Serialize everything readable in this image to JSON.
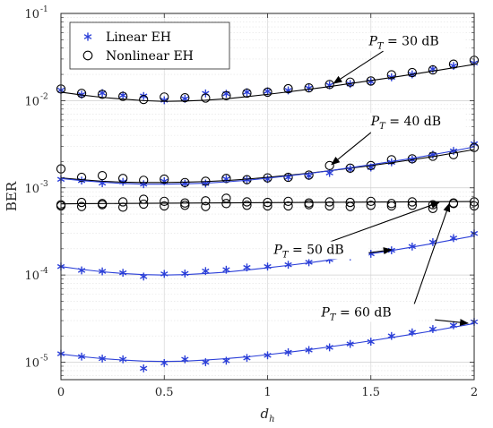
{
  "chart_data": {
    "type": "line",
    "xlabel": "d_h",
    "xlabel_main": "d",
    "xlabel_sub": "h",
    "ylabel": "BER",
    "xlim": [
      0,
      2
    ],
    "ylim_log10": [
      -5.2,
      -1
    ],
    "yscale": "log",
    "grid": true,
    "xticks": [
      0,
      0.5,
      1,
      1.5,
      2
    ],
    "xtick_labels": [
      "0",
      "0.5",
      "1",
      "1.5",
      "2"
    ],
    "yticks_exp": [
      -5,
      -4,
      -3,
      -2,
      -1
    ],
    "ytick_base": "10",
    "ytick_exps": [
      "-5",
      "-4",
      "-3",
      "-2",
      "-1"
    ],
    "legend": {
      "placement": "top-left",
      "entries": [
        {
          "label": "Linear EH",
          "marker": "asterisk",
          "color": "#2b3fd8"
        },
        {
          "label": "Nonlinear EH",
          "marker": "circle",
          "color": "#000000"
        }
      ]
    },
    "x": [
      0,
      0.1,
      0.2,
      0.3,
      0.4,
      0.5,
      0.6,
      0.7,
      0.8,
      0.9,
      1.0,
      1.1,
      1.2,
      1.3,
      1.4,
      1.5,
      1.6,
      1.7,
      1.8,
      1.9,
      2.0
    ],
    "series": [
      {
        "group": "30",
        "kind": "linear-markers",
        "color": "#2b3fd8",
        "values": [
          0.0132,
          0.0117,
          0.0122,
          0.0115,
          0.0113,
          0.0101,
          0.0105,
          0.0121,
          0.012,
          0.0125,
          0.0128,
          0.0131,
          0.0139,
          0.015,
          0.0155,
          0.0165,
          0.0185,
          0.02,
          0.023,
          0.025,
          0.027
        ]
      },
      {
        "group": "30",
        "kind": "nonlinear-markers",
        "color": "#000000",
        "values": [
          0.0136,
          0.0121,
          0.0118,
          0.0112,
          0.0103,
          0.011,
          0.0108,
          0.0107,
          0.0114,
          0.0122,
          0.0125,
          0.0137,
          0.014,
          0.0153,
          0.0163,
          0.0168,
          0.0198,
          0.021,
          0.0225,
          0.0262,
          0.029
        ]
      },
      {
        "group": "30",
        "kind": "curve",
        "color": "#000000",
        "values": [
          0.0125,
          0.0116,
          0.0109,
          0.0104,
          0.01,
          0.0098,
          0.0099,
          0.0101,
          0.0105,
          0.0111,
          0.0118,
          0.0126,
          0.0135,
          0.0145,
          0.0157,
          0.017,
          0.0184,
          0.02,
          0.0218,
          0.0238,
          0.026
        ]
      },
      {
        "group": "40",
        "kind": "linear-markers",
        "color": "#2b3fd8",
        "values": [
          0.00125,
          0.00121,
          0.00113,
          0.00117,
          0.0011,
          0.00119,
          0.00112,
          0.00112,
          0.00126,
          0.00124,
          0.00126,
          0.00132,
          0.00137,
          0.00148,
          0.00164,
          0.00171,
          0.00196,
          0.0021,
          0.0024,
          0.00265,
          0.0032
        ]
      },
      {
        "group": "40",
        "kind": "nonlinear-markers",
        "color": "#000000",
        "values": [
          0.00165,
          0.00132,
          0.00138,
          0.00128,
          0.00122,
          0.00126,
          0.00115,
          0.00119,
          0.00128,
          0.00124,
          0.0013,
          0.00132,
          0.0014,
          0.0018,
          0.00168,
          0.0018,
          0.0021,
          0.00215,
          0.0023,
          0.0024,
          0.0029
        ]
      },
      {
        "group": "40",
        "kind": "curve",
        "color": "#000000",
        "values": [
          0.0013,
          0.00124,
          0.00119,
          0.00116,
          0.00115,
          0.00115,
          0.00116,
          0.00118,
          0.00121,
          0.00126,
          0.00132,
          0.00139,
          0.00147,
          0.00157,
          0.00168,
          0.0018,
          0.00194,
          0.0021,
          0.00228,
          0.0025,
          0.00275
        ]
      },
      {
        "group": "40",
        "kind": "curve",
        "color": "#2b3fd8",
        "values": [
          0.00128,
          0.00121,
          0.00116,
          0.00112,
          0.0011,
          0.0011,
          0.00111,
          0.00113,
          0.00117,
          0.00122,
          0.00129,
          0.00137,
          0.00146,
          0.00157,
          0.0017,
          0.00184,
          0.002,
          0.00218,
          0.0024,
          0.00265,
          0.00295
        ]
      },
      {
        "group": "50",
        "kind": "nonlinear-markers",
        "color": "#000000",
        "values": [
          0.00064,
          0.00068,
          0.00066,
          0.00069,
          0.00065,
          0.0007,
          0.00067,
          0.00071,
          0.00066,
          0.00069,
          0.00068,
          0.0007,
          0.00067,
          0.00069,
          0.00068,
          0.0007,
          0.00066,
          0.00069,
          0.00064,
          0.00067,
          0.00069
        ]
      },
      {
        "group": "50",
        "kind": "nonlinear-markers-b",
        "color": "#000000",
        "values": [
          0.00062,
          0.00061,
          0.00064,
          0.0006,
          0.00074,
          0.00062,
          0.00063,
          0.00061,
          0.00076,
          0.00063,
          0.00062,
          0.00062,
          0.00064,
          0.00062,
          0.00061,
          0.00063,
          0.00062,
          0.00063,
          0.00058,
          0.00066,
          0.00062
        ]
      },
      {
        "group": "50",
        "kind": "curve",
        "color": "#000000",
        "values": [
          0.000655,
          0.000658,
          0.00066,
          0.000662,
          0.000664,
          0.000666,
          0.000668,
          0.00067,
          0.000672,
          0.000674,
          0.000676,
          0.000678,
          0.00068,
          0.000682,
          0.000684,
          0.000686,
          0.000688,
          0.00069,
          0.000692,
          0.000694,
          0.000696
        ]
      },
      {
        "group": "50",
        "kind": "linear-markers",
        "color": "#2b3fd8",
        "values": [
          0.000125,
          0.000113,
          0.00011,
          0.000106,
          9.6e-05,
          0.000103,
          0.000104,
          0.000111,
          0.000115,
          0.000122,
          0.000125,
          0.000131,
          0.00014,
          0.00015,
          0.000163,
          0.000175,
          0.000192,
          0.000212,
          0.000238,
          0.000265,
          0.0003
        ]
      },
      {
        "group": "50",
        "kind": "curve",
        "color": "#2b3fd8",
        "values": [
          0.000125,
          0.000116,
          0.000109,
          0.000104,
          0.000101,
          0.0001,
          0.000101,
          0.000104,
          0.000108,
          0.000114,
          0.000121,
          0.000129,
          0.000138,
          0.000149,
          0.000161,
          0.000175,
          0.000191,
          0.000209,
          0.00023,
          0.000254,
          0.000281
        ]
      },
      {
        "group": "60",
        "kind": "linear-markers",
        "color": "#2b3fd8",
        "values": [
          1.25e-05,
          1.16e-05,
          1.1e-05,
          1.08e-05,
          8.5e-06,
          9.8e-06,
          1.08e-05,
          1e-05,
          1.04e-05,
          1.12e-05,
          1.2e-05,
          1.3e-05,
          1.38e-05,
          1.48e-05,
          1.62e-05,
          1.72e-05,
          2e-05,
          2.2e-05,
          2.4e-05,
          2.65e-05,
          2.9e-05
        ]
      },
      {
        "group": "60",
        "kind": "curve",
        "color": "#2b3fd8",
        "values": [
          1.24e-05,
          1.16e-05,
          1.1e-05,
          1.06e-05,
          1.03e-05,
          1.02e-05,
          1.03e-05,
          1.06e-05,
          1.1e-05,
          1.15e-05,
          1.22e-05,
          1.3e-05,
          1.39e-05,
          1.5e-05,
          1.62e-05,
          1.76e-05,
          1.92e-05,
          2.09e-05,
          2.29e-05,
          2.52e-05,
          2.78e-05
        ]
      }
    ],
    "annotations": [
      {
        "id": "pt30",
        "prefix": "P",
        "sub": "T",
        "rest": " = 30 dB",
        "text_at": [
          1.49,
          0.043
        ],
        "arrows": [
          {
            "from": [
              1.56,
              0.037
            ],
            "to": [
              1.32,
              0.0158
            ]
          }
        ]
      },
      {
        "id": "pt40",
        "prefix": "P",
        "sub": "T",
        "rest": " = 40 dB",
        "text_at": [
          1.5,
          0.0052
        ],
        "arrows": [
          {
            "from": [
              1.5,
              0.0043
            ],
            "to": [
              1.31,
              0.00185
            ]
          }
        ]
      },
      {
        "id": "pt50",
        "prefix": "P",
        "sub": "T",
        "rest": " = 50 dB",
        "text_at": [
          1.03,
          0.000175
        ],
        "arrows": [
          {
            "from": [
              1.28,
              0.00023
            ],
            "to": [
              1.83,
              0.00068
            ]
          },
          {
            "from": [
              1.43,
              0.000172
            ],
            "to": [
              1.6,
              0.000195
            ]
          }
        ]
      },
      {
        "id": "pt60",
        "prefix": "P",
        "sub": "T",
        "rest": " = 60 dB",
        "text_at": [
          1.26,
          3.35e-05
        ],
        "arrows": [
          {
            "from": [
              1.69,
              3.4e-05
            ],
            "to": [
              1.88,
              0.00066
            ]
          },
          {
            "from": [
              1.81,
              3.06e-05
            ],
            "to": [
              1.97,
              2.8e-05
            ]
          }
        ]
      }
    ]
  }
}
